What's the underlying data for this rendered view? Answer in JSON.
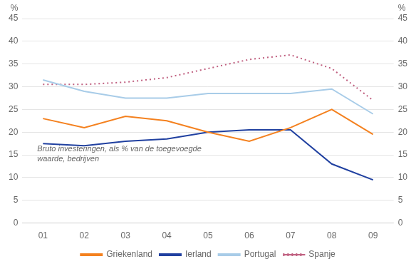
{
  "chart_data": {
    "type": "line",
    "categories": [
      "01",
      "02",
      "03",
      "04",
      "05",
      "06",
      "07",
      "08",
      "09"
    ],
    "series": [
      {
        "name": "Griekenland",
        "color": "#F4811F",
        "line_style": "solid",
        "values": [
          23.0,
          21.0,
          23.5,
          22.5,
          20.0,
          18.0,
          21.0,
          25.0,
          19.5
        ]
      },
      {
        "name": "Ierland",
        "color": "#2040A0",
        "line_style": "solid",
        "values": [
          17.5,
          17.0,
          18.0,
          18.5,
          20.0,
          20.5,
          20.5,
          13.0,
          9.5
        ]
      },
      {
        "name": "Portugal",
        "color": "#A8CCE8",
        "line_style": "solid",
        "values": [
          31.5,
          29.0,
          27.5,
          27.5,
          28.5,
          28.5,
          28.5,
          29.5,
          24.0
        ]
      },
      {
        "name": "Spanje",
        "color": "#C06080",
        "line_style": "dotted",
        "values": [
          30.5,
          30.5,
          31.0,
          32.0,
          34.0,
          36.0,
          37.0,
          34.0,
          27.0
        ]
      }
    ],
    "ylim": [
      0,
      45
    ],
    "yticks": [
      0,
      5,
      10,
      15,
      20,
      25,
      30,
      35,
      40,
      45
    ],
    "y2lim": [
      0,
      45
    ],
    "y2ticks": [
      0,
      5,
      10,
      15,
      20,
      25,
      30,
      35,
      40,
      45
    ],
    "ylabel": "%",
    "y2label": "%",
    "annotation": "Bruto investeringen, als % van de toegevoegde\nwaarde, bedrijven",
    "grid": true,
    "legend": "bottom"
  }
}
